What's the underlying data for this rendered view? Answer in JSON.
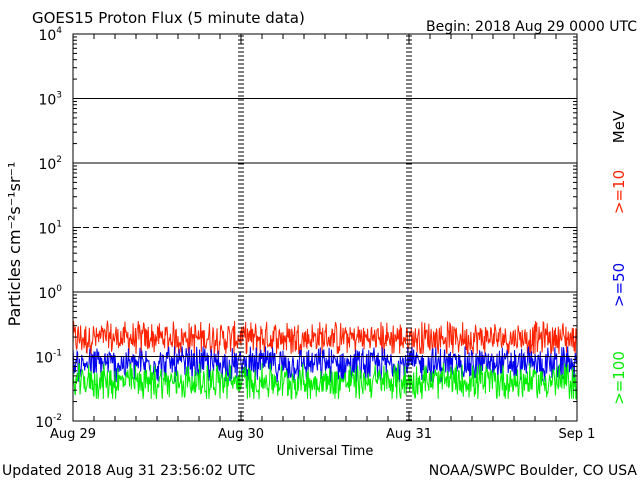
{
  "header": {
    "title": "GOES15 Proton Flux (5 minute data)",
    "begin": "Begin: 2018 Aug 29 0000 UTC"
  },
  "footer": {
    "updated": "Updated 2018 Aug 31 23:56:02 UTC",
    "credit": "NOAA/SWPC Boulder, CO USA"
  },
  "chart_data": {
    "type": "line",
    "title": "GOES15 Proton Flux (5 minute data)",
    "xlabel": "Universal Time",
    "ylabel": "Particles cm⁻²s⁻¹sr⁻¹",
    "yscale": "log",
    "ylim": [
      0.01,
      10000
    ],
    "xlim": [
      "2018-08-29",
      "2018-09-01"
    ],
    "x_tick_labels": [
      "Aug 29",
      "Aug 30",
      "Aug 31",
      "Sep 1"
    ],
    "y_tick_labels": [
      {
        "base": "10",
        "exp": "-2"
      },
      {
        "base": "10",
        "exp": "-1"
      },
      {
        "base": "10",
        "exp": "0"
      },
      {
        "base": "10",
        "exp": "1"
      },
      {
        "base": "10",
        "exp": "2"
      },
      {
        "base": "10",
        "exp": "3"
      },
      {
        "base": "10",
        "exp": "4"
      }
    ],
    "reference_lines": [
      {
        "y": 10,
        "style": "dashed"
      },
      {
        "y": 100,
        "style": "solid"
      },
      {
        "y": 1000,
        "style": "solid"
      },
      {
        "y": 1,
        "style": "solid"
      },
      {
        "y": 0.1,
        "style": "solid"
      }
    ],
    "grid": false,
    "legend_placement": "right, vertical",
    "units_label": "MeV",
    "series": [
      {
        "name": ">=10",
        "color": "#ff2200",
        "typical_value": 0.19,
        "range": [
          0.11,
          0.45
        ]
      },
      {
        "name": ">=50",
        "color": "#0000ee",
        "typical_value": 0.075,
        "range": [
          0.04,
          0.17
        ]
      },
      {
        "name": ">=100",
        "color": "#00ee00",
        "typical_value": 0.04,
        "range": [
          0.022,
          0.1
        ]
      }
    ]
  }
}
